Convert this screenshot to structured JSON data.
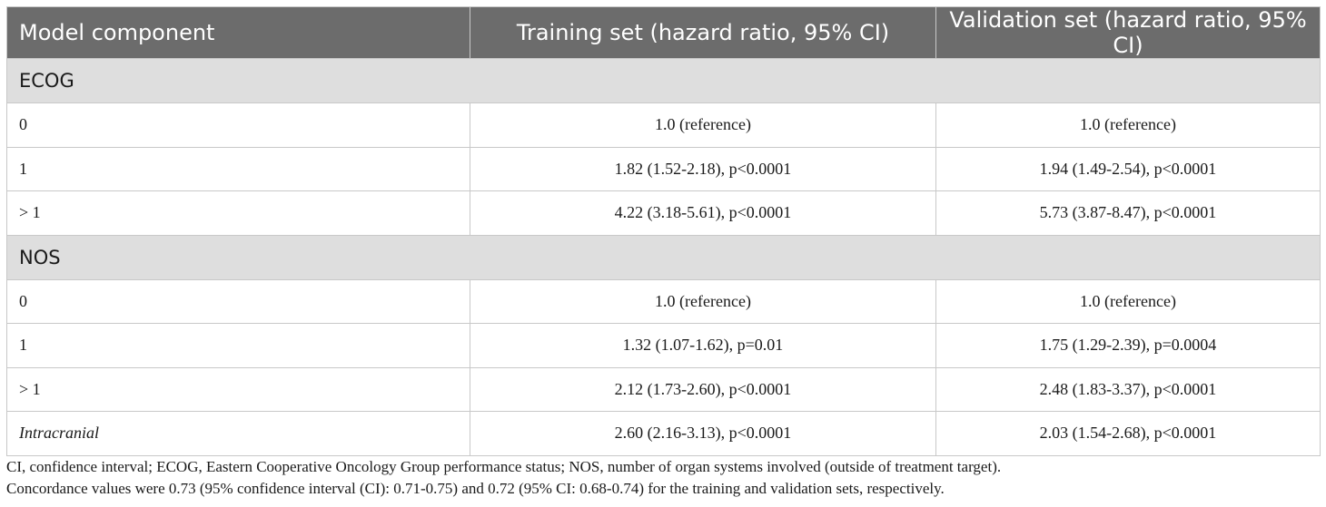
{
  "table": {
    "headers": [
      "Model component",
      "Training set (hazard ratio, 95% CI)",
      "Validation set (hazard ratio, 95% CI)"
    ],
    "groups": [
      {
        "label": "ECOG",
        "rows": [
          {
            "label": "0",
            "training": "1.0 (reference)",
            "validation": "1.0 (reference)"
          },
          {
            "label": "1",
            "training": "1.82 (1.52-2.18), p<0.0001",
            "validation": "1.94 (1.49-2.54), p<0.0001"
          },
          {
            "label": "> 1",
            "training": "4.22 (3.18-5.61), p<0.0001",
            "validation": "5.73 (3.87-8.47), p<0.0001"
          }
        ]
      },
      {
        "label": "NOS",
        "rows": [
          {
            "label": "0",
            "training": "1.0 (reference)",
            "validation": "1.0 (reference)"
          },
          {
            "label": "1",
            "training": "1.32 (1.07-1.62), p=0.01",
            "validation": "1.75 (1.29-2.39), p=0.0004"
          },
          {
            "label": "> 1",
            "training": "2.12 (1.73-2.60), p<0.0001",
            "validation": "2.48 (1.83-3.37), p<0.0001"
          },
          {
            "label": "Intracranial",
            "training": "2.60 (2.16-3.13), p<0.0001",
            "validation": "2.03 (1.54-2.68), p<0.0001"
          }
        ]
      }
    ]
  },
  "footnotes": {
    "abbreviations": "CI, confidence interval; ECOG, Eastern Cooperative Oncology Group performance status; NOS, number of organ systems involved (outside of treatment target).",
    "concordance": "Concordance values were 0.73 (95% confidence interval (CI): 0.71-0.75) and 0.72 (95% CI: 0.68-0.74) for the training and validation sets, respectively."
  },
  "colors": {
    "header_bg": "#6c6c6c",
    "group_bg": "#dedede",
    "border": "#c8c8c8"
  }
}
